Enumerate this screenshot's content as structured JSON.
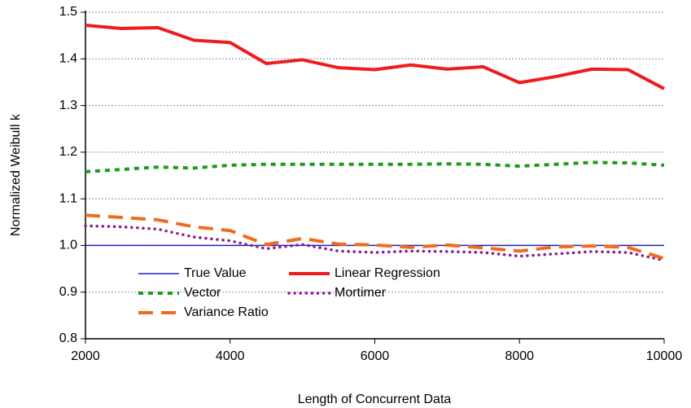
{
  "chart_data": {
    "type": "line",
    "x_label": "Length of Concurrent Data",
    "y_label": "Normalized Weibull k",
    "x": [
      2000,
      2500,
      3000,
      3500,
      4000,
      4500,
      5000,
      5500,
      6000,
      6500,
      7000,
      7500,
      8000,
      8500,
      9000,
      9500,
      10000
    ],
    "series": [
      {
        "name": "True Value",
        "color": "#1f1fbf",
        "style": "solid",
        "width": 1.5,
        "values": [
          1.0,
          1.0,
          1.0,
          1.0,
          1.0,
          1.0,
          1.0,
          1.0,
          1.0,
          1.0,
          1.0,
          1.0,
          1.0,
          1.0,
          1.0,
          1.0,
          1.0
        ]
      },
      {
        "name": "Linear Regression",
        "color": "#ee1c1c",
        "style": "solid",
        "width": 4,
        "values": [
          1.472,
          1.465,
          1.467,
          1.44,
          1.435,
          1.39,
          1.398,
          1.381,
          1.377,
          1.387,
          1.378,
          1.383,
          1.349,
          1.362,
          1.378,
          1.377,
          1.336
        ]
      },
      {
        "name": "Vector",
        "color": "#1e9a1e",
        "style": "dotted",
        "width": 4,
        "values": [
          1.158,
          1.163,
          1.168,
          1.166,
          1.172,
          1.174,
          1.174,
          1.174,
          1.174,
          1.174,
          1.175,
          1.174,
          1.17,
          1.174,
          1.178,
          1.177,
          1.172
        ]
      },
      {
        "name": "Mortimer",
        "color": "#8b1a8b",
        "style": "dots",
        "width": 3.5,
        "values": [
          1.042,
          1.04,
          1.035,
          1.018,
          1.01,
          0.993,
          1.002,
          0.988,
          0.985,
          0.988,
          0.987,
          0.985,
          0.977,
          0.982,
          0.987,
          0.985,
          0.968
        ]
      },
      {
        "name": "Variance Ratio",
        "color": "#f26b1d",
        "style": "dashed",
        "width": 4,
        "values": [
          1.065,
          1.06,
          1.055,
          1.04,
          1.032,
          1.002,
          1.015,
          1.003,
          1.001,
          0.996,
          1.001,
          0.995,
          0.988,
          0.997,
          0.999,
          0.996,
          0.972
        ]
      }
    ],
    "xlim": [
      2000,
      10000
    ],
    "xticks": [
      2000,
      4000,
      6000,
      8000,
      10000
    ],
    "ylim": [
      0.8,
      1.5
    ],
    "yticks": [
      0.8,
      0.9,
      {
        "value": 1,
        "label": "1.0"
      },
      1.1,
      1.2,
      1.3,
      1.4,
      1.5
    ],
    "grid": true,
    "grid_color": "#8888cc",
    "legend": "lower center"
  }
}
